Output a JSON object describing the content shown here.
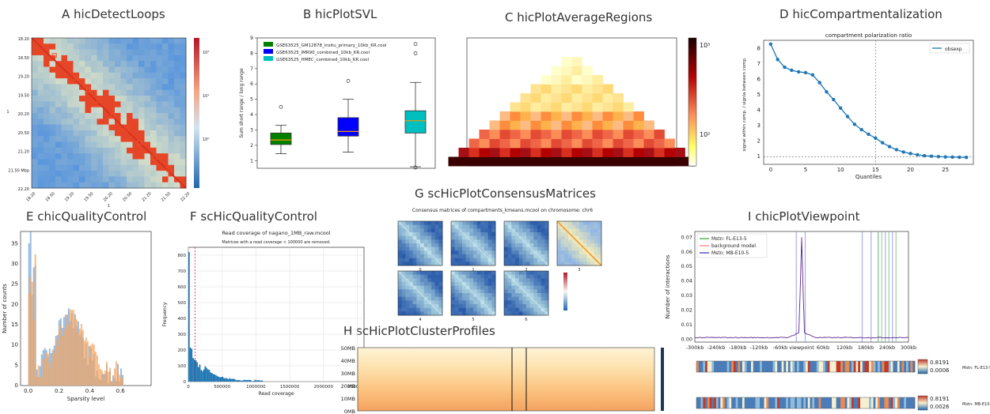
{
  "panels": {
    "A": {
      "title": "A  hicDetectLoops"
    },
    "B": {
      "title": "B  hicPlotSVL"
    },
    "C": {
      "title": "C  hicPlotAverageRegions"
    },
    "D": {
      "title": "D  hicCompartmentalization"
    },
    "E": {
      "title": "E  chicQualityControl"
    },
    "F": {
      "title": "F  scHicQualityControl"
    },
    "G": {
      "title": "G  scHicPlotConsensusMatrices"
    },
    "H": {
      "title": "H  scHicPlotClusterProfiles"
    },
    "I": {
      "title": "I  chicPlotViewpoint"
    }
  },
  "colors": {
    "heat_red": "#d7301f",
    "heat_blue": "#3b6fb6",
    "accent_blue": "#1f77b4",
    "accent_orange": "#ff7f0e"
  },
  "chart_data": [
    {
      "id": "A",
      "type": "heatmap",
      "tick_labels_x": [
        "18.20",
        "18.50",
        "19.20",
        "19.50",
        "20.20",
        "20.50",
        "21.20",
        "21.50",
        "22.20"
      ],
      "tick_labels_y": [
        "18.20",
        "18.50",
        "19.20",
        "19.50",
        "20.20",
        "20.50",
        "21.20",
        "21.50 Mbp",
        "22.20"
      ],
      "xlabel": "1",
      "ylabel": "1",
      "colorbar_ticks": [
        "10²",
        "10¹",
        "10⁰"
      ],
      "loops": [
        [
          0.12,
          0.15
        ],
        [
          0.27,
          0.29
        ],
        [
          0.35,
          0.37
        ],
        [
          0.42,
          0.44
        ],
        [
          0.52,
          0.53
        ],
        [
          0.61,
          0.62
        ],
        [
          0.7,
          0.7
        ],
        [
          0.8,
          0.8
        ],
        [
          0.88,
          0.89
        ]
      ]
    },
    {
      "id": "B",
      "type": "box",
      "ylabel": "Sum short range / long range",
      "ylim": [
        0.5,
        9
      ],
      "yticks": [
        1,
        2,
        3,
        4,
        5,
        6,
        7,
        8,
        9
      ],
      "series": [
        {
          "name": "GSE63525_GM12878_insitu_primary_10kb_KR.cool",
          "color": "#008000",
          "q1": 2.05,
          "median": 2.35,
          "q3": 2.8,
          "whislo": 1.45,
          "whishi": 3.3,
          "fliers": [
            4.5
          ]
        },
        {
          "name": "GSE63525_IMR90_combined_10kb_KR.cool",
          "color": "#0000ff",
          "q1": 2.6,
          "median": 2.9,
          "q3": 3.8,
          "whislo": 1.55,
          "whishi": 5.0,
          "fliers": [
            6.2
          ]
        },
        {
          "name": "GSE63525_HMEC_combined_10kb_KR.cool",
          "color": "#00bfbf",
          "q1": 2.8,
          "median": 3.6,
          "q3": 4.25,
          "whislo": 0.6,
          "whishi": 6.1,
          "fliers": [
            0.55,
            8.0,
            8.6
          ]
        }
      ]
    },
    {
      "id": "C",
      "type": "heatmap",
      "colorbar_ticks": [
        "10³",
        "10²"
      ]
    },
    {
      "id": "D",
      "type": "line",
      "title": "compartment polarization ratio",
      "xlabel": "Quantiles",
      "ylabel": "signal within comp. / signla between comp.",
      "series": [
        {
          "name": "obsexp",
          "values": [
            8.3,
            7.3,
            6.8,
            6.6,
            6.5,
            6.45,
            6.3,
            5.8,
            5.2,
            4.7,
            4.15,
            3.6,
            3.1,
            2.75,
            2.45,
            2.2,
            1.9,
            1.65,
            1.45,
            1.3,
            1.2,
            1.12,
            1.06,
            1.03,
            1.0,
            0.98,
            0.97,
            0.96,
            0.95
          ]
        }
      ],
      "xlim": [
        -1,
        29
      ],
      "ylim": [
        0.5,
        8.7
      ],
      "xticks": [
        0,
        5,
        10,
        15,
        20,
        25
      ],
      "yticks": [
        1,
        2,
        3,
        4,
        5,
        6,
        7,
        8
      ],
      "vline": 15,
      "hline": 1
    },
    {
      "id": "E",
      "type": "histogram",
      "xlabel": "Sparsity level",
      "ylabel": "Number of counts",
      "xlim": [
        -0.05,
        0.8
      ],
      "ylim": [
        0,
        38
      ],
      "xticks": [
        0.0,
        0.2,
        0.4,
        0.6
      ],
      "yticks": [
        0,
        5,
        10,
        15,
        20,
        25,
        30,
        35
      ]
    },
    {
      "id": "F",
      "type": "histogram",
      "title": "Read coverage of nagano_1MB_raw.mcool",
      "subtitle": "Matrices with a read coverage < 100000 are removed.",
      "xlabel": "Read coverage",
      "ylabel": "Frequency",
      "xlim": [
        0,
        2600000
      ],
      "ylim": [
        0,
        850
      ],
      "xticks": [
        0,
        500000,
        1000000,
        1500000,
        2000000,
        2500000
      ],
      "yticks": [
        0,
        100,
        200,
        300,
        400,
        500,
        600,
        700,
        800
      ],
      "threshold": 100000
    },
    {
      "id": "G",
      "type": "heatmap",
      "title": "Consensus matrices of compartments_kmeans.mcool on chromosome: chr6",
      "clusters": [
        "0",
        "1",
        "2",
        "3",
        "4",
        "5",
        "6"
      ]
    },
    {
      "id": "H",
      "type": "heatmap",
      "yticks": [
        "50MB",
        "40MB",
        "30MB",
        "20MB",
        "10MB",
        "0MB"
      ]
    },
    {
      "id": "I",
      "type": "line",
      "xlabel": "",
      "ylabel": "Number of interactions",
      "xticks": [
        "-300kb",
        "-240kb",
        "-180kb",
        "-120kb",
        "-60kb",
        "viewpoint",
        "60kb",
        "120kb",
        "180kb",
        "240kb",
        "300kb"
      ],
      "yticks": [
        "0.00",
        "0.01",
        "0.02",
        "0.03",
        "0.04",
        "0.05",
        "0.06",
        "0.07"
      ],
      "legend": [
        "Mstn: FL-E13-5",
        "background model",
        "Mstn: MB-E10-5"
      ],
      "tracks": [
        {
          "label": "Mstn: FL-E13-5",
          "max": "0.8191",
          "min": "0.0006"
        },
        {
          "label": "Mstn: MB-E10-5",
          "max": "0.8191",
          "min": "0.0026"
        }
      ]
    }
  ]
}
